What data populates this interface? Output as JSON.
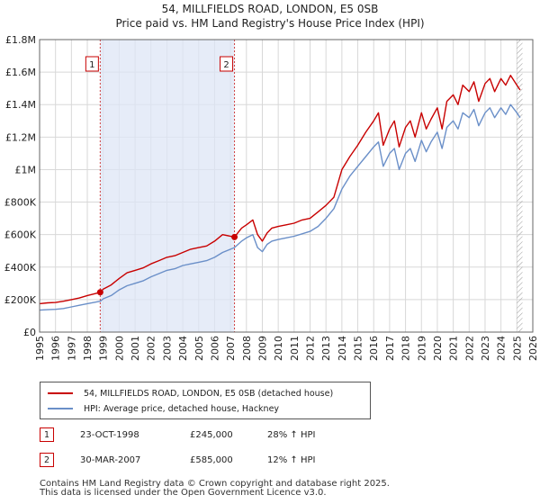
{
  "chart_data": {
    "type": "line",
    "title": "54, MILLFIELDS ROAD, LONDON, E5 0SB",
    "subtitle": "Price paid vs. HM Land Registry's House Price Index (HPI)",
    "xlabel": "",
    "ylabel": "",
    "xlim": [
      1995,
      2026
    ],
    "ylim": [
      0,
      1800000
    ],
    "grid": true,
    "y_ticks": [
      0,
      200000,
      400000,
      600000,
      800000,
      1000000,
      1200000,
      1400000,
      1600000,
      1800000
    ],
    "y_tick_labels": [
      "£0",
      "£200K",
      "£400K",
      "£600K",
      "£800K",
      "£1M",
      "£1.2M",
      "£1.4M",
      "£1.6M",
      "£1.8M"
    ],
    "x_ticks": [
      1995,
      1996,
      1997,
      1998,
      1999,
      2000,
      2001,
      2002,
      2003,
      2004,
      2005,
      2006,
      2007,
      2008,
      2009,
      2010,
      2011,
      2012,
      2013,
      2014,
      2015,
      2016,
      2017,
      2018,
      2019,
      2020,
      2021,
      2022,
      2023,
      2024,
      2025,
      2026
    ],
    "x_tick_labels": [
      "1995",
      "1996",
      "1997",
      "1998",
      "1999",
      "2000",
      "2001",
      "2002",
      "2003",
      "2004",
      "2005",
      "2006",
      "2007",
      "2008",
      "2009",
      "2010",
      "2011",
      "2012",
      "2013",
      "2014",
      "2015",
      "2016",
      "2017",
      "2018",
      "2019",
      "2020",
      "2021",
      "2022",
      "2023",
      "2024",
      "2025",
      "2026"
    ],
    "series": [
      {
        "name": "54, MILLFIELDS ROAD, LONDON, E5 0SB (detached house)",
        "color": "#c80000",
        "x": [
          1995,
          1995.5,
          1996,
          1996.5,
          1997,
          1997.5,
          1998,
          1998.81,
          1999,
          1999.5,
          2000,
          2000.5,
          2001,
          2001.5,
          2002,
          2002.5,
          2003,
          2003.5,
          2004,
          2004.5,
          2005,
          2005.5,
          2006,
          2006.5,
          2007.25,
          2007.7,
          2008,
          2008.4,
          2008.7,
          2009,
          2009.3,
          2009.6,
          2010,
          2010.5,
          2011,
          2011.5,
          2012,
          2012.5,
          2013,
          2013.5,
          2014,
          2014.5,
          2015,
          2015.5,
          2016,
          2016.3,
          2016.6,
          2017,
          2017.3,
          2017.6,
          2018,
          2018.3,
          2018.6,
          2019,
          2019.3,
          2019.6,
          2020,
          2020.3,
          2020.6,
          2021,
          2021.3,
          2021.6,
          2022,
          2022.3,
          2022.6,
          2023,
          2023.3,
          2023.6,
          2024,
          2024.3,
          2024.6,
          2025,
          2025.2
        ],
        "values": [
          175000,
          180000,
          182000,
          190000,
          200000,
          210000,
          225000,
          245000,
          265000,
          290000,
          330000,
          365000,
          380000,
          395000,
          420000,
          440000,
          460000,
          470000,
          490000,
          510000,
          520000,
          530000,
          560000,
          600000,
          585000,
          640000,
          660000,
          690000,
          600000,
          560000,
          610000,
          640000,
          650000,
          660000,
          670000,
          690000,
          700000,
          740000,
          780000,
          830000,
          1000000,
          1080000,
          1150000,
          1230000,
          1300000,
          1350000,
          1150000,
          1250000,
          1300000,
          1140000,
          1260000,
          1300000,
          1200000,
          1350000,
          1250000,
          1310000,
          1380000,
          1250000,
          1420000,
          1460000,
          1400000,
          1520000,
          1480000,
          1540000,
          1420000,
          1530000,
          1560000,
          1480000,
          1560000,
          1520000,
          1580000,
          1520000,
          1490000
        ]
      },
      {
        "name": "HPI: Average price, detached house, Hackney",
        "color": "#6a8fc8",
        "x": [
          1995,
          1995.5,
          1996,
          1996.5,
          1997,
          1997.5,
          1998,
          1998.81,
          1999,
          1999.5,
          2000,
          2000.5,
          2001,
          2001.5,
          2002,
          2002.5,
          2003,
          2003.5,
          2004,
          2004.5,
          2005,
          2005.5,
          2006,
          2006.5,
          2007.25,
          2007.7,
          2008,
          2008.4,
          2008.7,
          2009,
          2009.3,
          2009.6,
          2010,
          2010.5,
          2011,
          2011.5,
          2012,
          2012.5,
          2013,
          2013.5,
          2014,
          2014.5,
          2015,
          2015.5,
          2016,
          2016.3,
          2016.6,
          2017,
          2017.3,
          2017.6,
          2018,
          2018.3,
          2018.6,
          2019,
          2019.3,
          2019.6,
          2020,
          2020.3,
          2020.6,
          2021,
          2021.3,
          2021.6,
          2022,
          2022.3,
          2022.6,
          2023,
          2023.3,
          2023.6,
          2024,
          2024.3,
          2024.6,
          2025,
          2025.2
        ],
        "values": [
          135000,
          138000,
          140000,
          145000,
          155000,
          165000,
          175000,
          190000,
          205000,
          225000,
          260000,
          285000,
          300000,
          315000,
          340000,
          360000,
          380000,
          390000,
          410000,
          420000,
          430000,
          440000,
          460000,
          490000,
          520000,
          560000,
          580000,
          600000,
          520000,
          495000,
          540000,
          560000,
          570000,
          580000,
          590000,
          605000,
          620000,
          650000,
          700000,
          760000,
          880000,
          960000,
          1020000,
          1080000,
          1140000,
          1170000,
          1020000,
          1100000,
          1130000,
          1000000,
          1100000,
          1130000,
          1050000,
          1180000,
          1110000,
          1170000,
          1230000,
          1130000,
          1260000,
          1300000,
          1250000,
          1350000,
          1320000,
          1370000,
          1270000,
          1350000,
          1380000,
          1320000,
          1380000,
          1340000,
          1400000,
          1350000,
          1320000
        ]
      }
    ],
    "markers": [
      {
        "label": "1",
        "date": 1998.81,
        "price": 245000
      },
      {
        "label": "2",
        "date": 2007.25,
        "price": 585000
      }
    ]
  },
  "legend": {
    "red_label": "54, MILLFIELDS ROAD, LONDON, E5 0SB (detached house)",
    "blue_label": "HPI: Average price, detached house, Hackney"
  },
  "transactions": [
    {
      "num": "1",
      "date": "23-OCT-1998",
      "price": "£245,000",
      "hpi": "28% ↑ HPI"
    },
    {
      "num": "2",
      "date": "30-MAR-2007",
      "price": "£585,000",
      "hpi": "12% ↑ HPI"
    }
  ],
  "footer": {
    "line1": "Contains HM Land Registry data © Crown copyright and database right 2025.",
    "line2": "This data is licensed under the Open Government Licence v3.0."
  }
}
